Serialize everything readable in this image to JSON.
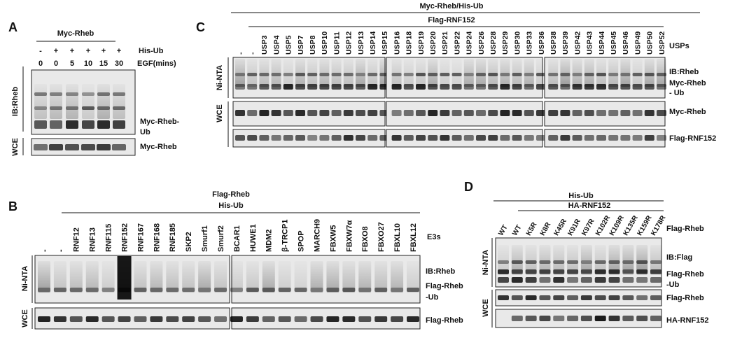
{
  "panel_a": {
    "letter": "A",
    "header": "Myc-Rheb",
    "his_ub_label": "His-Ub",
    "his_ub": [
      "-",
      "+",
      "+",
      "+",
      "+",
      "+"
    ],
    "egf_label": "EGF(mins)",
    "egf": [
      "0",
      "0",
      "5",
      "10",
      "15",
      "30"
    ],
    "side_labels": [
      "IB:Rheb",
      "WCE"
    ],
    "band_labels": [
      "Myc-Rheb-",
      "Ub",
      "Myc-Rheb"
    ]
  },
  "panel_b": {
    "letter": "B",
    "headers": [
      "Flag-Rheb",
      "His-Ub"
    ],
    "lanes": [
      "-",
      "-",
      "RNF12",
      "RNF13",
      "RNF115",
      "RNF152",
      "RNF167",
      "RNF168",
      "RNF185",
      "SKP2",
      "Smurf1",
      "Smurf2",
      "BCAR1",
      "HUWE1",
      "MDM2",
      "β-TRCP1",
      "SPOP",
      "MARCH9",
      "FBXW5",
      "FBXW7α",
      "FBXO8",
      "FBXO27",
      "FBXL10",
      "FBXL12"
    ],
    "lane_group_label": "E3s",
    "side_labels": [
      "Ni-NTA",
      "WCE"
    ],
    "band_labels": [
      "IB:Rheb",
      "Flag-Rheb",
      "-Ub",
      "Flag-Rheb"
    ]
  },
  "panel_c": {
    "letter": "C",
    "headers": [
      "Myc-Rheb/His-Ub",
      "Flag-RNF152"
    ],
    "lanes": [
      "-",
      "-",
      "USP3",
      "USP4",
      "USP5",
      "USP7",
      "USP8",
      "USP10",
      "USP11",
      "USP12",
      "USP13",
      "USP14",
      "USP15",
      "USP16",
      "USP18",
      "USP19",
      "USP20",
      "USP21",
      "USP22",
      "USP24",
      "USP26",
      "USP28",
      "USP29",
      "USP30",
      "USP33",
      "USP36",
      "USP38",
      "USP39",
      "USP42",
      "USP43",
      "USP44",
      "USP45",
      "USP46",
      "USP49",
      "USP50",
      "USP52"
    ],
    "lane_colors": [
      "#111111",
      "#111111",
      "#111111",
      "#e00000",
      "#e00000",
      "#111111",
      "#111111",
      "#111111",
      "#e00000",
      "#111111",
      "#111111",
      "#111111",
      "#e00000",
      "#111111",
      "#111111",
      "#111111",
      "#111111",
      "#111111",
      "#e00000",
      "#111111",
      "#111111",
      "#111111",
      "#111111",
      "#111111",
      "#111111",
      "#111111",
      "#111111",
      "#111111",
      "#111111",
      "#111111",
      "#111111",
      "#111111",
      "#111111",
      "#111111",
      "#111111",
      "#111111"
    ],
    "lane_group_label": "USPs",
    "side_labels": [
      "Ni-NTA",
      "WCE"
    ],
    "band_labels": [
      "IB:Rheb",
      "Myc-Rheb",
      "- Ub",
      "Myc-Rheb",
      "Flag-RNF152"
    ]
  },
  "panel_d": {
    "letter": "D",
    "headers": [
      "His-Ub",
      "HA-RNF152"
    ],
    "lanes": [
      "WT",
      "WT",
      "K5R",
      "K8R",
      "K45R",
      "K91R",
      "K97R",
      "K102R",
      "K109R",
      "K135R",
      "K159R",
      "K178R"
    ],
    "side_labels": [
      "Ni-NTA",
      "WCE"
    ],
    "band_labels": [
      "Flag-Rheb",
      "IB:Flag",
      "Flag-Rheb",
      "-Ub",
      "Flag-Rheb",
      "HA-RNF152"
    ]
  }
}
